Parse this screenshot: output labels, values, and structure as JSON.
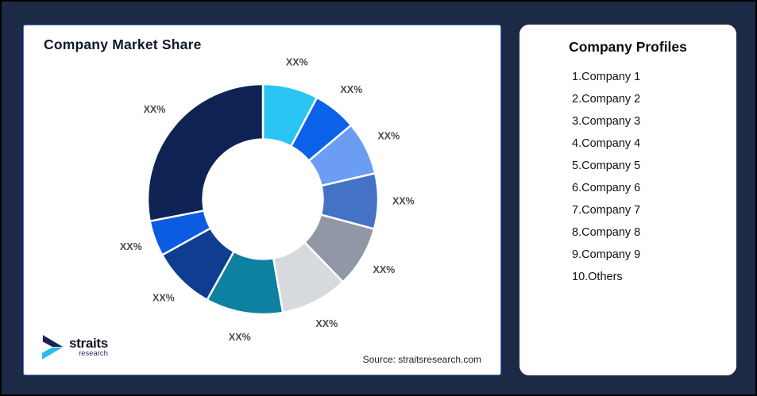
{
  "page": {
    "background": "#1D2A46",
    "frame_border": "#000000"
  },
  "market_share_card": {
    "title": "Company Market Share",
    "source_note": "Source: straitsresearch.com",
    "border_color": "#4472D8",
    "logo": {
      "brand": "straits",
      "brand_sub": "research",
      "mark_dark": "#152455",
      "mark_cyan": "#29BEEA"
    }
  },
  "chart_data": {
    "type": "donut",
    "title": "Company Market Share",
    "legend_position": "none",
    "start_angle_deg": 0,
    "direction": "clockwise",
    "outer_radius_px": 145,
    "inner_radius_ratio": 0.52,
    "label_radius_ratio": 1.22,
    "label_color": "#4A4A4A",
    "slice_gap_color": "#FFFFFF",
    "slices": [
      {
        "name": "Company 1",
        "label": "XX%",
        "angle_deg": 28,
        "color": "#29C4F2"
      },
      {
        "name": "Company 2",
        "label": "XX%",
        "angle_deg": 22,
        "color": "#0B61EA"
      },
      {
        "name": "Company 3",
        "label": "XX%",
        "angle_deg": 27,
        "color": "#6B9EF2"
      },
      {
        "name": "Company 4",
        "label": "XX%",
        "angle_deg": 28,
        "color": "#4472C4"
      },
      {
        "name": "Company 5",
        "label": "XX%",
        "angle_deg": 31,
        "color": "#9098A6"
      },
      {
        "name": "Company 6",
        "label": "XX%",
        "angle_deg": 34,
        "color": "#D6D9DE"
      },
      {
        "name": "Company 7",
        "label": "XX%",
        "angle_deg": 39,
        "color": "#0E80A0"
      },
      {
        "name": "Company 8",
        "label": "XX%",
        "angle_deg": 32,
        "color": "#113D90"
      },
      {
        "name": "Company 9",
        "label": "XX%",
        "angle_deg": 18,
        "color": "#0C5CE2"
      },
      {
        "name": "Others",
        "label": "XX%",
        "angle_deg": 101,
        "color": "#0E2254"
      }
    ]
  },
  "profiles_card": {
    "title": "Company Profiles",
    "items": [
      "1.Company 1",
      "2.Company 2",
      "3.Company 3",
      "4.Company 4",
      "5.Company 5",
      "6.Company 6",
      "7.Company 7",
      "8.Company 8",
      "9.Company 9",
      "10.Others"
    ]
  }
}
